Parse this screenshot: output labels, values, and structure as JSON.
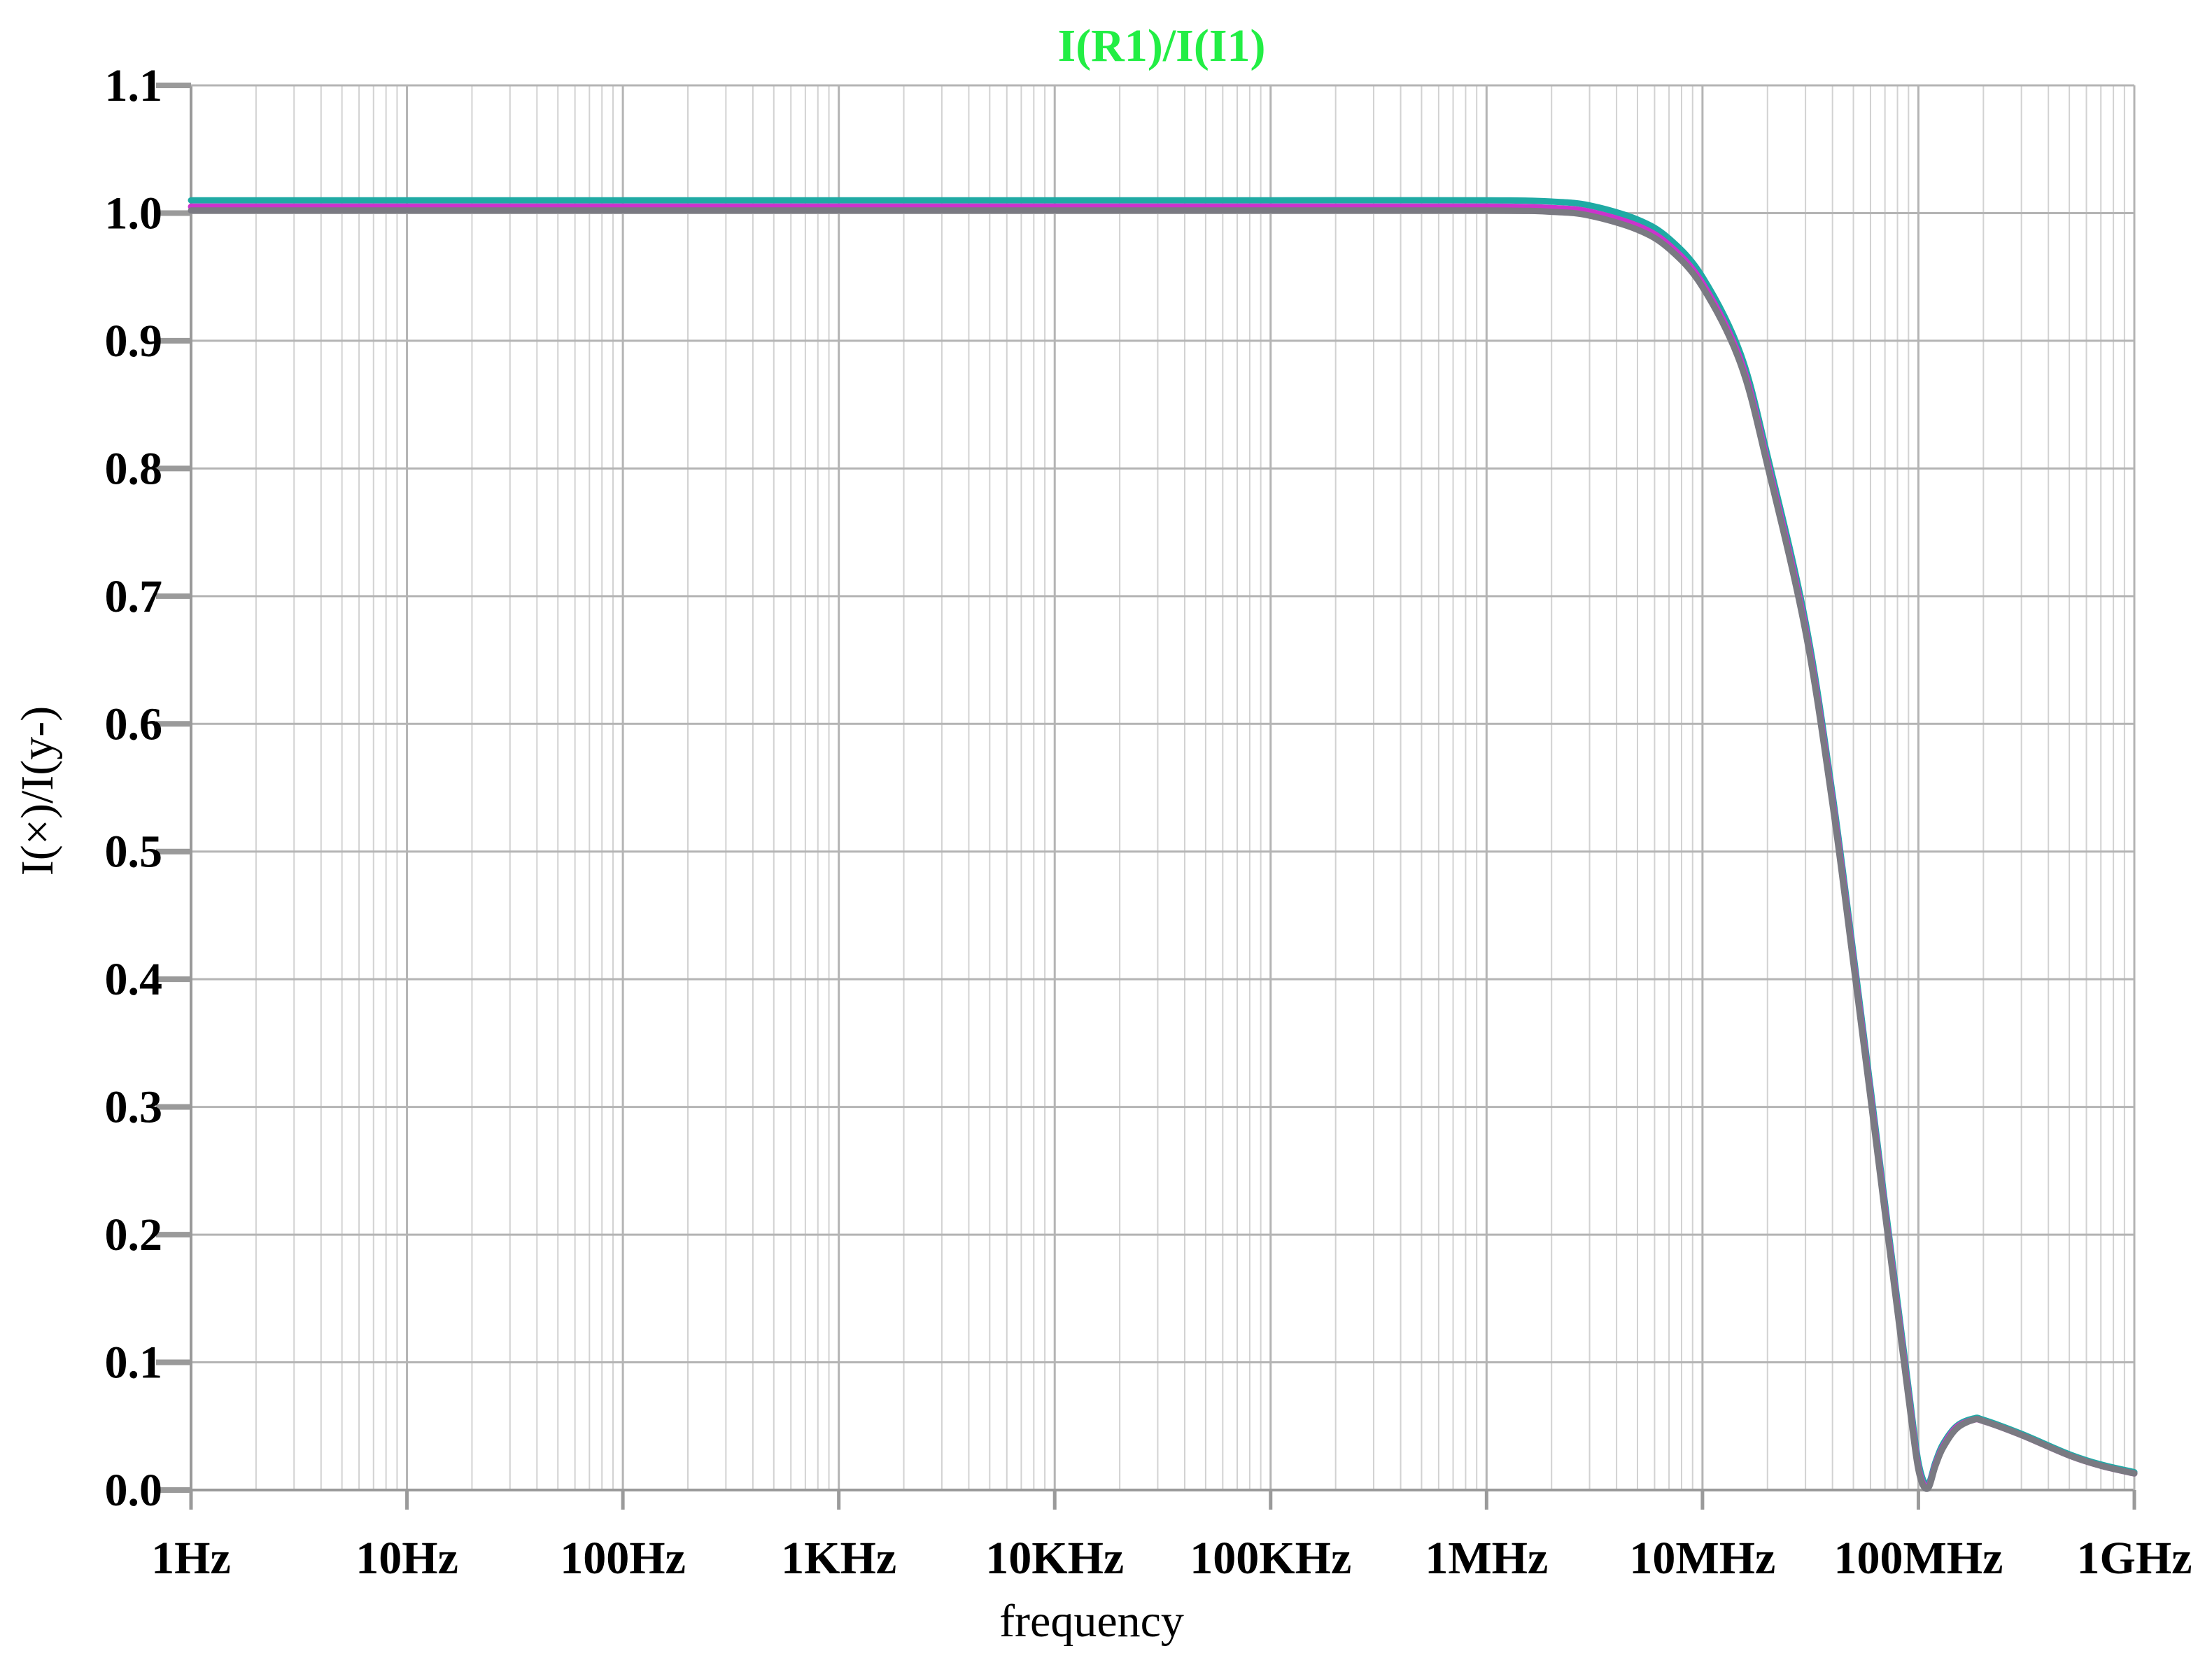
{
  "chart_data": {
    "type": "line",
    "title": "I(R1)/I(I1)",
    "title_color": "#22ee44",
    "xlabel": "frequency",
    "ylabel": "I(×)/I(y-)",
    "x_scale": "log",
    "xlim": [
      1,
      1000000000
    ],
    "ylim": [
      0.0,
      1.1
    ],
    "grid": true,
    "x_ticks": [
      {
        "value": 1,
        "label": "1Hz"
      },
      {
        "value": 10,
        "label": "10Hz"
      },
      {
        "value": 100,
        "label": "100Hz"
      },
      {
        "value": 1000,
        "label": "1KHz"
      },
      {
        "value": 10000,
        "label": "10KHz"
      },
      {
        "value": 100000,
        "label": "100KHz"
      },
      {
        "value": 1000000,
        "label": "1MHz"
      },
      {
        "value": 10000000,
        "label": "10MHz"
      },
      {
        "value": 100000000,
        "label": "100MHz"
      },
      {
        "value": 1000000000,
        "label": "1GHz"
      }
    ],
    "y_ticks": [
      {
        "value": 0.0,
        "label": "0.0"
      },
      {
        "value": 0.1,
        "label": "0.1"
      },
      {
        "value": 0.2,
        "label": "0.2"
      },
      {
        "value": 0.3,
        "label": "0.3"
      },
      {
        "value": 0.4,
        "label": "0.4"
      },
      {
        "value": 0.5,
        "label": "0.5"
      },
      {
        "value": 0.6,
        "label": "0.6"
      },
      {
        "value": 0.7,
        "label": "0.7"
      },
      {
        "value": 0.8,
        "label": "0.8"
      },
      {
        "value": 0.9,
        "label": "0.9"
      },
      {
        "value": 1.0,
        "label": "1.0"
      },
      {
        "value": 1.1,
        "label": "1.1"
      }
    ],
    "x": [
      1,
      10,
      100,
      1000,
      10000,
      100000,
      1000000,
      2000000,
      3000000,
      5000000,
      7000000,
      10000000,
      15000000,
      20000000,
      30000000,
      40000000,
      50000000,
      60000000,
      70000000,
      80000000,
      90000000,
      100000000,
      110000000,
      120000000,
      130000000,
      150000000,
      180000000,
      200000000,
      300000000,
      500000000,
      700000000,
      1000000000
    ],
    "series": [
      {
        "color": "#1faaa4",
        "values": [
          1.01,
          1.01,
          1.01,
          1.01,
          1.01,
          1.01,
          1.01,
          1.009,
          1.006,
          0.995,
          0.98,
          0.95,
          0.89,
          0.81,
          0.68,
          0.545,
          0.42,
          0.315,
          0.225,
          0.148,
          0.08,
          0.022,
          0.004,
          0.022,
          0.036,
          0.05,
          0.056,
          0.055,
          0.044,
          0.028,
          0.02,
          0.014
        ]
      },
      {
        "color": "#cc33cc",
        "values": [
          1.005,
          1.005,
          1.005,
          1.005,
          1.005,
          1.005,
          1.005,
          1.004,
          1.001,
          0.99,
          0.975,
          0.945,
          0.885,
          0.805,
          0.675,
          0.54,
          0.415,
          0.31,
          0.22,
          0.143,
          0.075,
          0.018,
          0.002,
          0.02,
          0.034,
          0.049,
          0.055,
          0.054,
          0.043,
          0.027,
          0.019,
          0.013
        ]
      },
      {
        "color": "#7a7a82",
        "values": [
          1.002,
          1.002,
          1.002,
          1.002,
          1.002,
          1.002,
          1.002,
          1.001,
          0.998,
          0.987,
          0.972,
          0.942,
          0.882,
          0.802,
          0.672,
          0.537,
          0.412,
          0.307,
          0.217,
          0.14,
          0.072,
          0.016,
          0.001,
          0.019,
          0.033,
          0.048,
          0.055,
          0.054,
          0.043,
          0.027,
          0.019,
          0.013
        ]
      }
    ]
  }
}
